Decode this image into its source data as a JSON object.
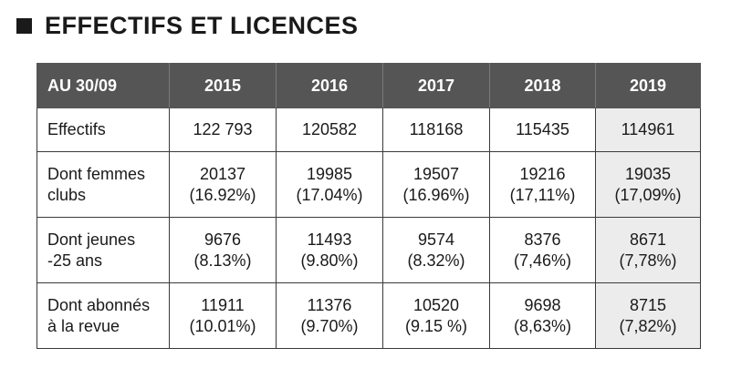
{
  "title": "EFFECTIFS ET LICENCES",
  "table": {
    "header": [
      "AU 30/09",
      "2015",
      "2016",
      "2017",
      "2018",
      "2019"
    ],
    "rows": [
      {
        "label": [
          "Effectifs"
        ],
        "cells": [
          [
            "122 793"
          ],
          [
            "120582"
          ],
          [
            "118168"
          ],
          [
            "115435"
          ],
          [
            "114961"
          ]
        ]
      },
      {
        "label": [
          "Dont femmes",
          "clubs"
        ],
        "cells": [
          [
            "20137",
            "(16.92%)"
          ],
          [
            "19985",
            "(17.04%)"
          ],
          [
            "19507",
            "(16.96%)"
          ],
          [
            "19216",
            "(17,11%)"
          ],
          [
            "19035",
            "(17,09%)"
          ]
        ]
      },
      {
        "label": [
          "Dont jeunes",
          "-25 ans"
        ],
        "cells": [
          [
            "9676",
            "(8.13%)"
          ],
          [
            "11493",
            "(9.80%)"
          ],
          [
            "9574",
            "(8.32%)"
          ],
          [
            "8376",
            "(7,46%)"
          ],
          [
            "8671",
            "(7,78%)"
          ]
        ]
      },
      {
        "label": [
          "Dont abonnés",
          "à la revue"
        ],
        "cells": [
          [
            "11911",
            "(10.01%)"
          ],
          [
            "11376",
            "(9.70%)"
          ],
          [
            "10520",
            "(9.15 %)"
          ],
          [
            "9698",
            "(8,63%)"
          ],
          [
            "8715",
            "(7,82%)"
          ]
        ]
      }
    ]
  },
  "colors": {
    "header_bg": "#555555",
    "header_text": "#ffffff",
    "highlight_column_bg": "#ececec",
    "border": "#3a3a3a"
  }
}
